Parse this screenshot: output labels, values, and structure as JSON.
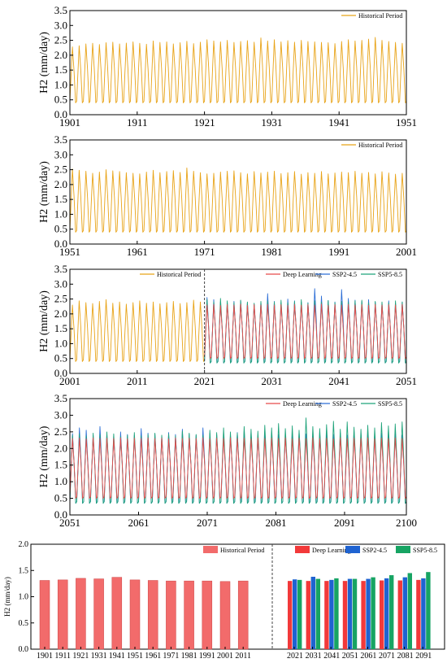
{
  "colors": {
    "historical": "#E8A317",
    "deep_learning": "#E84A4A",
    "ssp245": "#2E6FD6",
    "ssp585": "#1FA37A",
    "bar_historical": "#F26B6B",
    "bar_deep": "#F2393A",
    "bar_ssp245": "#1F63D1",
    "bar_ssp585": "#17A463"
  },
  "chart_data": [
    {
      "type": "line",
      "ylabel": "H2 (mm/day)",
      "ylim": [
        0,
        3.5
      ],
      "yticks": [
        "0.0",
        "0.5",
        "1.0",
        "1.5",
        "2.0",
        "2.5",
        "3.0",
        "3.5"
      ],
      "xlim": [
        1901,
        1951
      ],
      "xticks": [
        "1901",
        "1911",
        "1921",
        "1931",
        "1941",
        "1951"
      ],
      "legend": "top-right",
      "series": [
        {
          "name": "Historical Period",
          "color_key": "historical",
          "start": 1901,
          "end": 1951,
          "min": 0.4,
          "peaks": [
            2.28,
            2.32,
            2.38,
            2.4,
            2.36,
            2.42,
            2.44,
            2.38,
            2.41,
            2.45,
            2.4,
            2.37,
            2.48,
            2.43,
            2.45,
            2.38,
            2.42,
            2.47,
            2.39,
            2.44,
            2.52,
            2.48,
            2.45,
            2.5,
            2.43,
            2.46,
            2.49,
            2.44,
            2.58,
            2.48,
            2.52,
            2.45,
            2.49,
            2.44,
            2.5,
            2.46,
            2.45,
            2.43,
            2.42,
            2.39,
            2.46,
            2.52,
            2.48,
            2.5,
            2.54,
            2.6,
            2.5,
            2.46,
            2.43,
            2.4
          ]
        }
      ]
    },
    {
      "type": "line",
      "ylabel": "H2 (mm/day)",
      "ylim": [
        0,
        3.5
      ],
      "yticks": [
        "0.0",
        "0.5",
        "1.0",
        "1.5",
        "2.0",
        "2.5",
        "3.0",
        "3.5"
      ],
      "xlim": [
        1951,
        2001
      ],
      "xticks": [
        "1951",
        "1961",
        "1971",
        "1981",
        "1991",
        "2001"
      ],
      "legend": "top-right",
      "series": [
        {
          "name": "Historical Period",
          "color_key": "historical",
          "start": 1951,
          "end": 2001,
          "min": 0.4,
          "peaks": [
            2.52,
            2.48,
            2.45,
            2.38,
            2.42,
            2.5,
            2.46,
            2.44,
            2.4,
            2.38,
            2.36,
            2.42,
            2.48,
            2.4,
            2.44,
            2.47,
            2.41,
            2.56,
            2.45,
            2.4,
            2.36,
            2.38,
            2.42,
            2.45,
            2.46,
            2.4,
            2.36,
            2.44,
            2.39,
            2.42,
            2.45,
            2.37,
            2.4,
            2.44,
            2.35,
            2.4,
            2.38,
            2.44,
            2.36,
            2.39,
            2.42,
            2.4,
            2.45,
            2.38,
            2.41,
            2.36,
            2.43,
            2.39,
            2.35,
            2.38
          ]
        }
      ]
    },
    {
      "type": "line",
      "ylabel": "H2 (mm/day)",
      "ylim": [
        0,
        3.5
      ],
      "yticks": [
        "0.0",
        "0.5",
        "1.0",
        "1.5",
        "2.0",
        "2.5",
        "3.0",
        "3.5"
      ],
      "xlim": [
        2001,
        2051
      ],
      "xticks": [
        "2001",
        "2011",
        "2021",
        "2031",
        "2041",
        "2051"
      ],
      "divider": 2021,
      "legend_left": [
        "Historical Period"
      ],
      "legend_right": [
        "Deep Learning",
        "SSP2-4.5",
        "SSP5-8.5"
      ],
      "series": [
        {
          "name": "Historical Period",
          "color_key": "historical",
          "start": 2001,
          "end": 2021,
          "min": 0.4,
          "peaks": [
            2.3,
            2.44,
            2.38,
            2.35,
            2.42,
            2.48,
            2.36,
            2.4,
            2.33,
            2.38,
            2.44,
            2.36,
            2.4,
            2.34,
            2.38,
            2.42,
            2.35,
            2.38,
            2.46,
            2.4
          ]
        },
        {
          "name": "SSP2-4.5",
          "color_key": "ssp245",
          "start": 2021,
          "end": 2051,
          "min": 0.35,
          "peaks": [
            2.55,
            2.48,
            2.4,
            2.36,
            2.42,
            2.45,
            2.38,
            2.33,
            2.4,
            2.68,
            2.42,
            2.38,
            2.5,
            2.44,
            2.4,
            2.38,
            2.85,
            2.6,
            2.45,
            2.4,
            2.82,
            2.52,
            2.46,
            2.42,
            2.48,
            2.4,
            2.38,
            2.44,
            2.36,
            2.4
          ]
        },
        {
          "name": "SSP5-8.5",
          "color_key": "ssp585",
          "start": 2021,
          "end": 2051,
          "min": 0.35,
          "peaks": [
            2.48,
            2.4,
            2.52,
            2.44,
            2.38,
            2.46,
            2.4,
            2.36,
            2.42,
            2.44,
            2.4,
            2.46,
            2.38,
            2.42,
            2.48,
            2.36,
            2.44,
            2.4,
            2.45,
            2.38,
            2.42,
            2.4,
            2.44,
            2.46,
            2.38,
            2.42,
            2.4,
            2.38,
            2.44,
            2.4
          ]
        },
        {
          "name": "Deep Learning",
          "color_key": "deep_learning",
          "start": 2021,
          "end": 2051,
          "min": 0.5,
          "peaks": [
            2.3,
            2.32,
            2.28,
            2.31,
            2.3,
            2.33,
            2.29,
            2.31,
            2.3,
            2.32,
            2.3,
            2.31,
            2.29,
            2.32,
            2.3,
            2.31,
            2.3,
            2.33,
            2.29,
            2.31,
            2.3,
            2.32,
            2.3,
            2.31,
            2.29,
            2.32,
            2.3,
            2.31,
            2.3,
            2.32
          ]
        }
      ]
    },
    {
      "type": "line",
      "ylabel": "H2 (mm/day)",
      "ylim": [
        0,
        3.5
      ],
      "yticks": [
        "0.0",
        "0.5",
        "1.0",
        "1.5",
        "2.0",
        "2.5",
        "3.0",
        "3.5"
      ],
      "xlim": [
        2051,
        2100
      ],
      "xticks": [
        "2051",
        "2061",
        "2071",
        "2081",
        "2091",
        "2100"
      ],
      "legend_right": [
        "Deep Learning",
        "SSP2-4.5",
        "SSP5-8.5"
      ],
      "series": [
        {
          "name": "SSP2-4.5",
          "color_key": "ssp245",
          "start": 2051,
          "end": 2100,
          "min": 0.35,
          "peaks": [
            2.45,
            2.62,
            2.55,
            2.4,
            2.66,
            2.44,
            2.38,
            2.5,
            2.42,
            2.4,
            2.6,
            2.46,
            2.44,
            2.38,
            2.48,
            2.42,
            2.58,
            2.44,
            2.4,
            2.62,
            2.46,
            2.42,
            2.44,
            2.4,
            2.48,
            2.52,
            2.46,
            2.38,
            2.5,
            2.44,
            2.42,
            2.4,
            2.46,
            2.5,
            2.44,
            2.38,
            2.48,
            2.54,
            2.42,
            2.46,
            2.4,
            2.52,
            2.44,
            2.48,
            2.42,
            2.46,
            2.5,
            2.44,
            2.4
          ]
        },
        {
          "name": "SSP5-8.5",
          "color_key": "ssp585",
          "start": 2051,
          "end": 2100,
          "min": 0.35,
          "peaks": [
            2.4,
            2.44,
            2.38,
            2.46,
            2.42,
            2.5,
            2.44,
            2.36,
            2.4,
            2.48,
            2.38,
            2.42,
            2.46,
            2.4,
            2.44,
            2.38,
            2.52,
            2.46,
            2.42,
            2.4,
            2.55,
            2.48,
            2.62,
            2.5,
            2.46,
            2.66,
            2.58,
            2.52,
            2.7,
            2.62,
            2.75,
            2.6,
            2.68,
            2.55,
            2.92,
            2.66,
            2.6,
            2.72,
            2.82,
            2.58,
            2.8,
            2.64,
            2.58,
            2.7,
            2.62,
            2.78,
            2.68,
            2.74,
            2.8
          ]
        },
        {
          "name": "Deep Learning",
          "color_key": "deep_learning",
          "start": 2051,
          "end": 2100,
          "min": 0.5,
          "peaks": [
            2.3,
            2.31,
            2.29,
            2.32,
            2.3,
            2.31,
            2.3,
            2.32,
            2.29,
            2.31,
            2.3,
            2.32,
            2.3,
            2.31,
            2.29,
            2.32,
            2.3,
            2.31,
            2.3,
            2.32,
            2.29,
            2.31,
            2.3,
            2.32,
            2.3,
            2.31,
            2.29,
            2.32,
            2.3,
            2.31,
            2.3,
            2.32,
            2.29,
            2.31,
            2.3,
            2.32,
            2.3,
            2.31,
            2.29,
            2.32,
            2.3,
            2.31,
            2.3,
            2.32,
            2.29,
            2.31,
            2.3,
            2.32,
            2.3
          ]
        }
      ]
    },
    {
      "type": "bar",
      "ylabel": "H2 (mm/day)",
      "ylim": [
        0,
        2.0
      ],
      "yticks": [
        "0.0",
        "0.5",
        "1.0",
        "1.5",
        "2.0"
      ],
      "legend_left": [
        "Historical Period"
      ],
      "legend_right": [
        "Deep Learning",
        "SSP2-4.5",
        "SSP5-8.5"
      ],
      "historical": {
        "categories": [
          "1901",
          "1911",
          "1921",
          "1931",
          "1941",
          "1951",
          "1961",
          "1971",
          "1981",
          "1991",
          "2001",
          "2011"
        ],
        "values": [
          1.31,
          1.32,
          1.35,
          1.34,
          1.37,
          1.32,
          1.31,
          1.3,
          1.3,
          1.3,
          1.29,
          1.3
        ]
      },
      "future": {
        "categories": [
          "2021",
          "2031",
          "2041",
          "2051",
          "2061",
          "2071",
          "2081",
          "2091"
        ],
        "series": [
          {
            "name": "Deep Learning",
            "color_key": "bar_deep",
            "values": [
              1.3,
              1.3,
              1.3,
              1.3,
              1.3,
              1.31,
              1.31,
              1.32
            ]
          },
          {
            "name": "SSP2-4.5",
            "color_key": "bar_ssp245",
            "values": [
              1.33,
              1.38,
              1.32,
              1.34,
              1.34,
              1.35,
              1.37,
              1.35
            ]
          },
          {
            "name": "SSP5-8.5",
            "color_key": "bar_ssp585",
            "values": [
              1.32,
              1.34,
              1.35,
              1.34,
              1.37,
              1.41,
              1.45,
              1.47
            ]
          }
        ]
      }
    }
  ]
}
